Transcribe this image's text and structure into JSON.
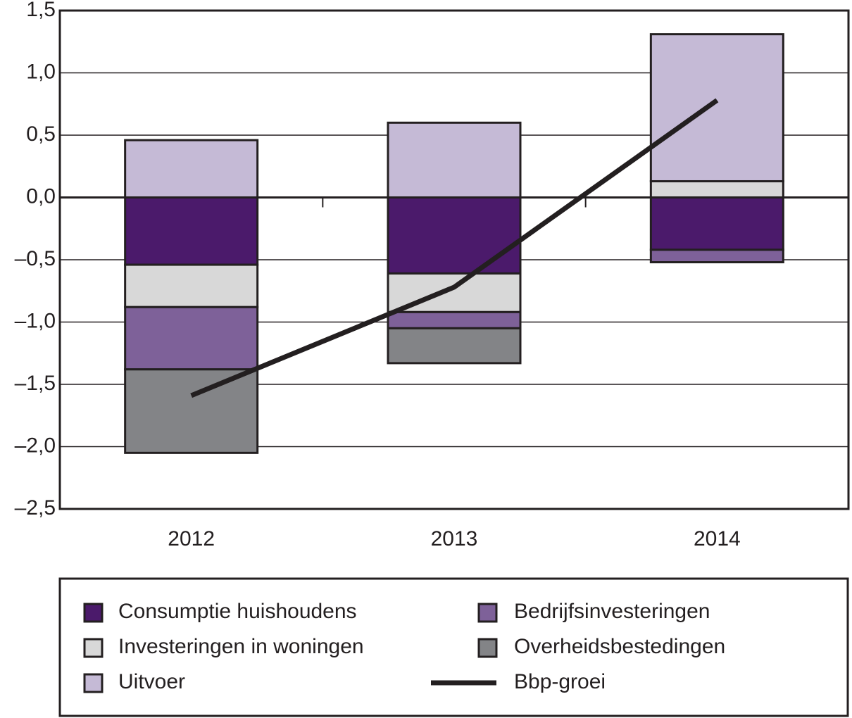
{
  "chart_data": {
    "type": "bar",
    "categories": [
      "2012",
      "2013",
      "2014"
    ],
    "series": [
      {
        "name": "Consumptie huishoudens",
        "color": "#4b1a6b",
        "values": [
          -0.54,
          -0.61,
          -0.42
        ]
      },
      {
        "name": "Investeringen in woningen",
        "color": "#d8d8d8",
        "values": [
          -0.34,
          -0.31,
          0.13
        ]
      },
      {
        "name": "Bedrijfsinvesteringen",
        "color": "#7e6199",
        "values": [
          -0.5,
          -0.13,
          -0.1
        ]
      },
      {
        "name": "Overheidsbestedingen",
        "color": "#838487",
        "values": [
          -0.67,
          -0.28,
          0
        ]
      },
      {
        "name": "Uitvoer",
        "color": "#c5bad6",
        "values": [
          0.46,
          0.6,
          1.18
        ]
      },
      {
        "name": "Bbp-groei",
        "type": "line",
        "color": "#231f20",
        "values": [
          -1.59,
          -0.72,
          0.78
        ]
      }
    ],
    "ylim": [
      -2.5,
      1.5
    ],
    "yticks": [
      {
        "value": -2.5,
        "label": "–2,5"
      },
      {
        "value": -2,
        "label": "–2,0"
      },
      {
        "value": -1.5,
        "label": "–1,5"
      },
      {
        "value": -1,
        "label": "–1,0"
      },
      {
        "value": -0.5,
        "label": "–0,5"
      },
      {
        "value": 0,
        "label": "0,0"
      },
      {
        "value": 0.5,
        "label": "0,5"
      },
      {
        "value": 1,
        "label": "1,0"
      },
      {
        "value": 1.5,
        "label": "1,5"
      }
    ],
    "grid": true
  }
}
